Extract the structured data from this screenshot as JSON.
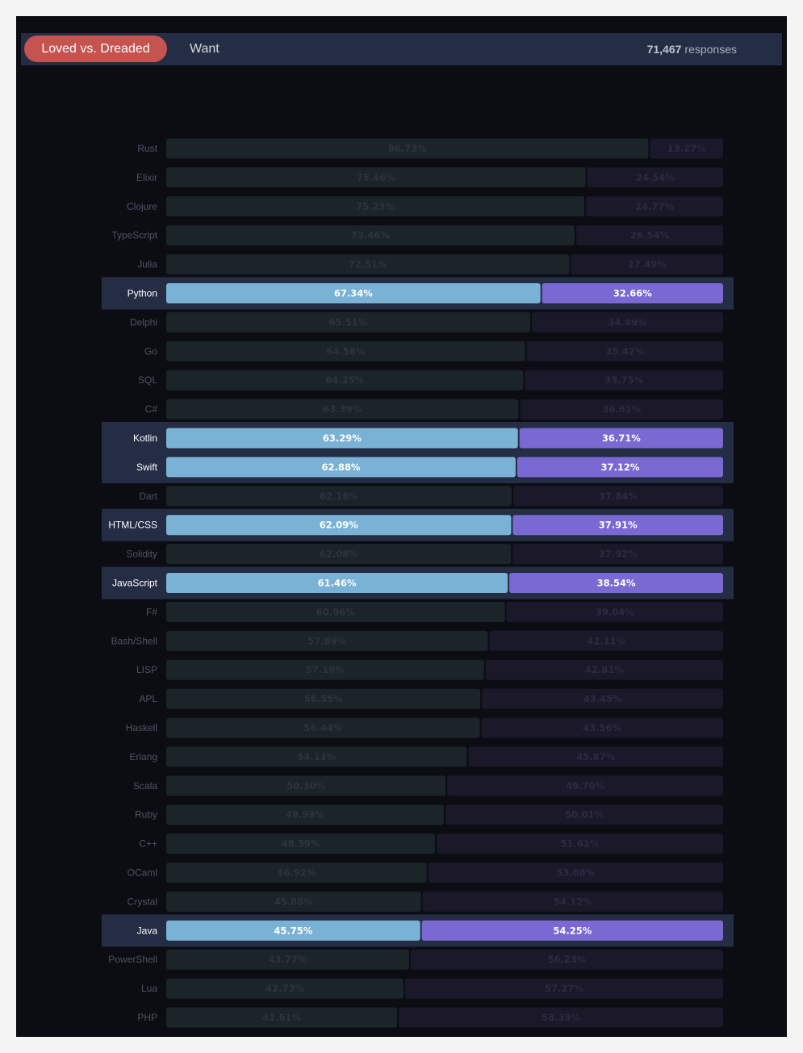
{
  "header": {
    "tab_active": "Loved vs. Dreaded",
    "tab_other": "Want",
    "response_count": "71,467",
    "response_label": "responses"
  },
  "colors": {
    "loved": "#7ab2d6",
    "dreaded": "#7a68d3",
    "loved_dim": "#1b2429",
    "dreaded_dim": "#1a1829",
    "highlight_band": "#252d44",
    "label_dim": "#4d5463",
    "label_active": "#ffffff"
  },
  "chart_data": {
    "type": "bar",
    "stacked": true,
    "orientation": "horizontal",
    "categories": [
      "Rust",
      "Elixir",
      "Clojure",
      "TypeScript",
      "Julia",
      "Python",
      "Delphi",
      "Go",
      "SQL",
      "C#",
      "Kotlin",
      "Swift",
      "Dart",
      "HTML/CSS",
      "Solidity",
      "JavaScript",
      "F#",
      "Bash/Shell",
      "LISP",
      "APL",
      "Haskell",
      "Erlang",
      "Scala",
      "Ruby",
      "C++",
      "OCaml",
      "Crystal",
      "Java",
      "PowerShell",
      "Lua",
      "PHP"
    ],
    "highlighted": [
      "Python",
      "Kotlin",
      "Swift",
      "HTML/CSS",
      "JavaScript",
      "Java"
    ],
    "series": [
      {
        "name": "Loved",
        "values": [
          86.73,
          75.46,
          75.23,
          73.46,
          72.51,
          67.34,
          65.51,
          64.58,
          64.25,
          63.39,
          63.29,
          62.88,
          62.16,
          62.09,
          62.08,
          61.46,
          60.96,
          57.89,
          57.19,
          56.55,
          56.44,
          54.13,
          50.3,
          49.99,
          48.39,
          46.92,
          45.88,
          45.75,
          43.77,
          42.73,
          41.61
        ]
      },
      {
        "name": "Dreaded",
        "values": [
          13.27,
          24.54,
          24.77,
          26.54,
          27.49,
          32.66,
          34.49,
          35.42,
          35.75,
          36.61,
          36.71,
          37.12,
          37.84,
          37.91,
          37.92,
          38.54,
          39.04,
          42.11,
          42.81,
          43.45,
          43.56,
          45.87,
          49.7,
          50.01,
          51.61,
          53.08,
          54.12,
          54.25,
          56.23,
          57.27,
          58.39
        ]
      }
    ],
    "display_labels": {
      "Loved": [
        "86.73%",
        "75.46%",
        "75.23%",
        "73.46%",
        "72.51%",
        "67.34%",
        "65.51%",
        "64.58%",
        "64.25%",
        "63.39%",
        "63.29%",
        "62.88%",
        "62.16%",
        "62.09%",
        "62.08%",
        "61.46%",
        "60.96%",
        "57.89%",
        "57.19%",
        "56.55%",
        "56.44%",
        "54.13%",
        "50.30%",
        "49.99%",
        "48.39%",
        "46.92%",
        "45.88%",
        "45.75%",
        "43.77%",
        "42.73%",
        "41.61%"
      ],
      "Dreaded": [
        "13.27%",
        "24.54%",
        "24.77%",
        "26.54%",
        "27.49%",
        "32.66%",
        "34.49%",
        "35.42%",
        "35.75%",
        "36.61%",
        "36.71%",
        "37.12%",
        "37.84%",
        "37.91%",
        "37.92%",
        "38.54%",
        "39.04%",
        "42.11%",
        "42.81%",
        "43.45%",
        "43.56%",
        "45.87%",
        "49.70%",
        "50.01%",
        "51.61%",
        "53.08%",
        "54.12%",
        "54.25%",
        "56.23%",
        "57.27%",
        "58.39%"
      ]
    },
    "xlim": [
      0,
      100
    ]
  }
}
